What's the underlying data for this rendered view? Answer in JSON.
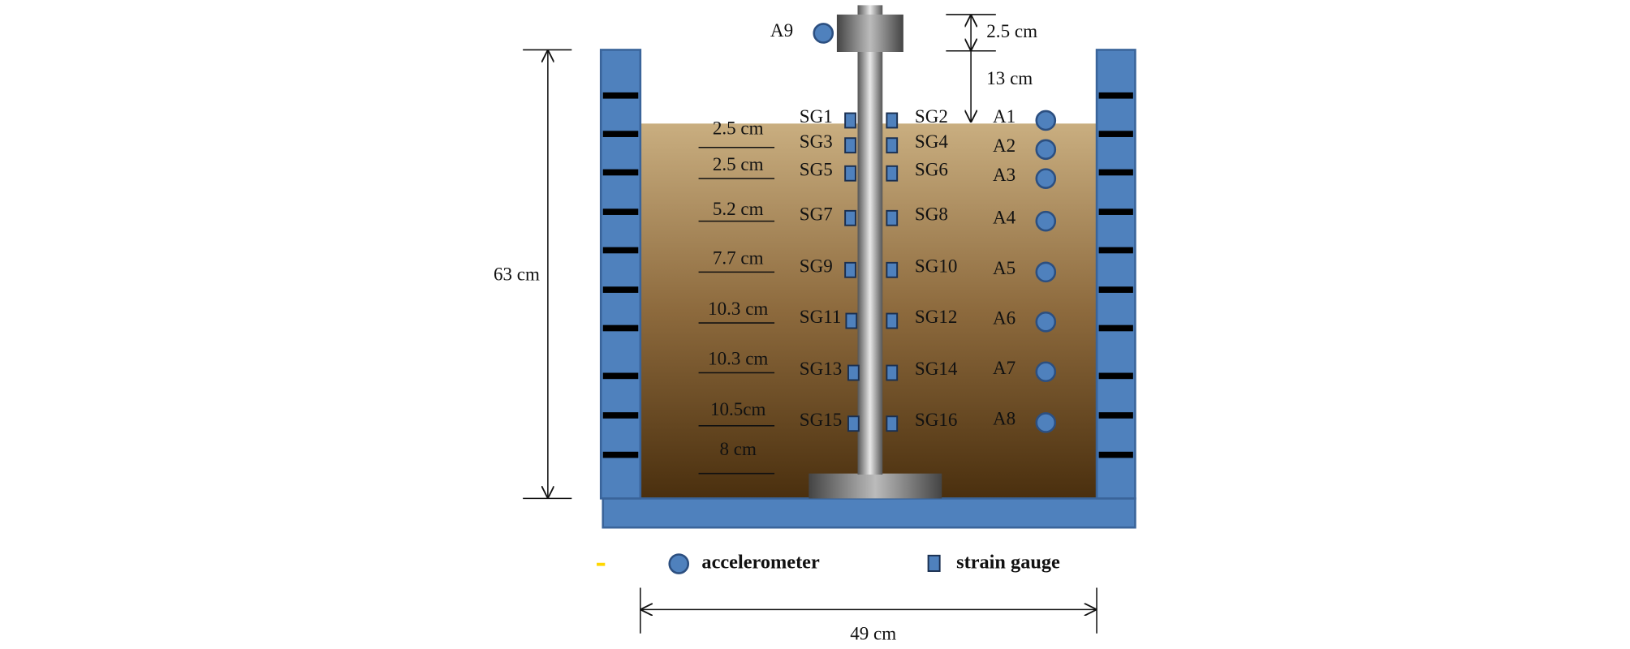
{
  "dimensions": {
    "top_gap": "2.5 cm",
    "head_height": "13 cm",
    "container_height": "63 cm",
    "container_width": "49 cm"
  },
  "layers": [
    "2.5 cm",
    "2.5 cm",
    "5.2 cm",
    "7.7 cm",
    "10.3 cm",
    "10.3 cm",
    "10.5cm",
    "8 cm"
  ],
  "strain_gauges_left": [
    "SG1",
    "SG3",
    "SG5",
    "SG7",
    "SG9",
    "SG11",
    "SG13",
    "SG15"
  ],
  "strain_gauges_right": [
    "SG2",
    "SG4",
    "SG6",
    "SG8",
    "SG10",
    "SG12",
    "SG14",
    "SG16"
  ],
  "accelerometers": [
    "A1",
    "A2",
    "A3",
    "A4",
    "A5",
    "A6",
    "A7",
    "A8"
  ],
  "top_accelerometer": "A9",
  "legend": {
    "accelerometer": "accelerometer",
    "strain_gauge": "strain gauge"
  }
}
